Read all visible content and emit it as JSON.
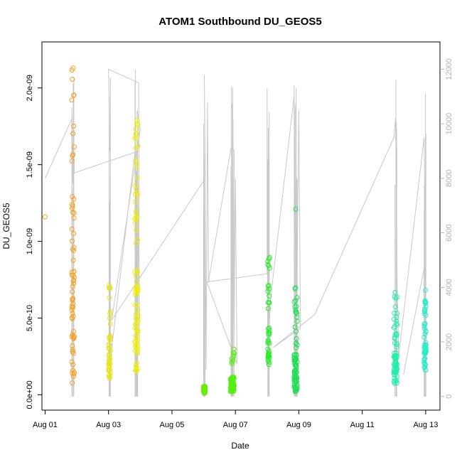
{
  "chart_data": {
    "type": "scatter",
    "title": "ATOM1 Southbound DU_GEOS5",
    "xlabel": "Date",
    "ylabel": "DU_GEOS5",
    "ylabel_right": "",
    "x_ticks": [
      "Aug 01",
      "Aug 03",
      "Aug 05",
      "Aug 07",
      "Aug 09",
      "Aug 11",
      "Aug 13"
    ],
    "y_ticks": [
      "0.0e+00",
      "5.0e-10",
      "1.0e-09",
      "1.5e-09",
      "2.0e-09"
    ],
    "y_ticks_right": [
      "0",
      "2000",
      "4000",
      "6000",
      "8000",
      "10000",
      "12000"
    ],
    "xlim_days": [
      0.9,
      13.45
    ],
    "ylim": [
      -1e-10,
      2.3e-09
    ],
    "y2lim": [
      -500,
      13000
    ],
    "right_axis": "altitude trace (grey line)",
    "colors": {
      "aug01_02": "#f5a023",
      "aug03": "#e8e61a",
      "aug04": "#f0f000",
      "aug06": "#66ee00",
      "aug07": "#55ee11",
      "aug08": "#22ee22",
      "aug09": "#22dd55",
      "aug12": "#22eeaa",
      "aug13": "#22eec8",
      "line": "#c8c8c8"
    },
    "legs": [
      {
        "center": 1.88,
        "spread": 0.04,
        "ymin": 7e-11,
        "ymax": 2.22e-09,
        "n": 70,
        "color": "aug01_02",
        "dense": 0.45
      },
      {
        "center": 3.03,
        "spread": 0.03,
        "ymin": 1e-10,
        "ymax": 7.2e-10,
        "n": 45,
        "color": "aug03",
        "dense": 0.3
      },
      {
        "center": 3.88,
        "spread": 0.05,
        "ymin": 1.5e-10,
        "ymax": 1.85e-09,
        "n": 80,
        "color": "aug04",
        "dense": 0.4
      },
      {
        "center": 6.02,
        "spread": 0.03,
        "ymin": 1e-11,
        "ymax": 1.4e-10,
        "n": 45,
        "color": "aug06",
        "dense": 0.9
      },
      {
        "center": 6.9,
        "spread": 0.06,
        "ymin": 2e-11,
        "ymax": 3e-10,
        "n": 80,
        "color": "aug07",
        "dense": 0.9
      },
      {
        "center": 8.05,
        "spread": 0.03,
        "ymin": 1.5e-10,
        "ymax": 9.6e-10,
        "n": 40,
        "color": "aug08",
        "dense": 0.6
      },
      {
        "center": 8.9,
        "spread": 0.05,
        "ymin": 2e-11,
        "ymax": 7.2e-10,
        "n": 80,
        "color": "aug09",
        "dense": 0.6
      },
      {
        "center": 12.05,
        "spread": 0.05,
        "ymin": 7e-11,
        "ymax": 6.7e-10,
        "n": 70,
        "color": "aug12",
        "dense": 0.5
      },
      {
        "center": 12.98,
        "spread": 0.03,
        "ymin": 1.6e-10,
        "ymax": 7.2e-10,
        "n": 50,
        "color": "aug13",
        "dense": 0.5
      }
    ],
    "outliers": [
      {
        "x": 1.0,
        "y": 1.16e-09,
        "color": "aug01_02"
      },
      {
        "x": 8.9,
        "y": 1.21e-09,
        "color": "aug09"
      }
    ],
    "altitude_line": [
      [
        1.0,
        8000
      ],
      [
        1.85,
        10200
      ],
      [
        1.87,
        7800
      ],
      [
        1.9,
        10000
      ],
      [
        1.92,
        8200
      ],
      [
        3.95,
        9000
      ],
      [
        3.97,
        9200
      ],
      [
        3.85,
        9100
      ],
      [
        3.02,
        1000
      ],
      [
        3.02,
        11000
      ],
      [
        3.04,
        9000
      ],
      [
        3.0,
        12000
      ],
      [
        3.95,
        11500
      ],
      [
        3.97,
        1500
      ],
      [
        3.9,
        10500
      ],
      [
        4.0,
        9800
      ],
      [
        3.1,
        2800
      ],
      [
        6.05,
        8000
      ],
      [
        6.02,
        11800
      ],
      [
        6.08,
        1000
      ],
      [
        6.12,
        10800
      ],
      [
        6.15,
        4200
      ],
      [
        6.92,
        9500
      ],
      [
        6.96,
        2500
      ],
      [
        7.0,
        8000
      ],
      [
        7.05,
        1200
      ],
      [
        6.1,
        4200
      ],
      [
        8.0,
        4500
      ],
      [
        8.0,
        11300
      ],
      [
        8.02,
        1000
      ],
      [
        8.1,
        3500
      ],
      [
        8.85,
        11000
      ],
      [
        8.92,
        1800
      ],
      [
        9.0,
        10500
      ],
      [
        9.05,
        2500
      ],
      [
        8.2,
        1800
      ],
      [
        9.5,
        3000
      ],
      [
        12.0,
        9500
      ],
      [
        12.05,
        10200
      ],
      [
        12.1,
        4000
      ],
      [
        12.15,
        1500
      ],
      [
        12.95,
        9500
      ],
      [
        13.0,
        5000
      ],
      [
        12.3,
        800
      ]
    ]
  }
}
